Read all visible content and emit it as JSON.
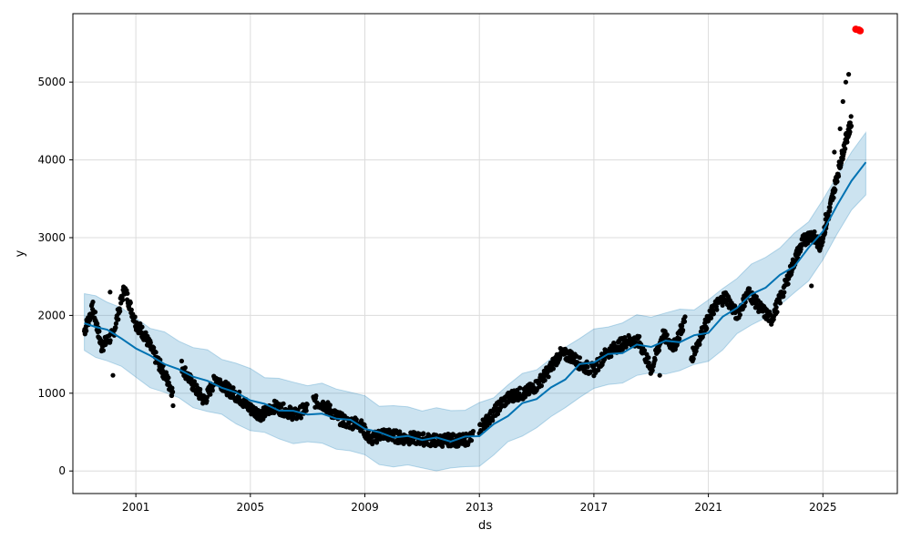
{
  "chart_data": {
    "type": "scatter",
    "title": "",
    "xlabel": "ds",
    "ylabel": "y",
    "xlim": [
      1998.8,
      2027.6
    ],
    "ylim": [
      -290,
      5880
    ],
    "x_ticks": [
      "2001",
      "2005",
      "2009",
      "2013",
      "2017",
      "2021",
      "2025"
    ],
    "y_ticks": [
      "0",
      "1000",
      "2000",
      "3000",
      "4000",
      "5000"
    ],
    "grid": true,
    "colors": {
      "observed": "#000000",
      "forecast_line": "#0072B2",
      "interval": "#0072B2",
      "highlight": "#ff0000"
    },
    "forecast": {
      "x": [
        1999.2,
        1999.6,
        2000.0,
        2000.5,
        2001.0,
        2001.5,
        2002.0,
        2002.5,
        2003.0,
        2003.5,
        2004.0,
        2004.5,
        2005.0,
        2005.5,
        2006.0,
        2006.5,
        2007.0,
        2007.5,
        2008.0,
        2008.5,
        2009.0,
        2009.5,
        2010.0,
        2010.5,
        2011.0,
        2011.5,
        2012.0,
        2012.5,
        2013.0,
        2013.5,
        2014.0,
        2014.5,
        2015.0,
        2015.5,
        2016.0,
        2016.5,
        2017.0,
        2017.5,
        2018.0,
        2018.5,
        2019.0,
        2019.5,
        2020.0,
        2020.5,
        2021.0,
        2021.5,
        2022.0,
        2022.5,
        2023.0,
        2023.5,
        2024.0,
        2024.5,
        2025.0,
        2025.5,
        2026.0,
        2026.5
      ],
      "yhat": [
        1900,
        1850,
        1820,
        1700,
        1580,
        1480,
        1380,
        1300,
        1220,
        1150,
        1080,
        1000,
        920,
        850,
        790,
        760,
        740,
        720,
        690,
        640,
        560,
        480,
        450,
        430,
        420,
        410,
        400,
        420,
        470,
        580,
        730,
        850,
        950,
        1050,
        1200,
        1350,
        1420,
        1480,
        1540,
        1600,
        1620,
        1650,
        1680,
        1720,
        1800,
        1960,
        2120,
        2250,
        2380,
        2500,
        2650,
        2850,
        3100,
        3400,
        3750,
        3950
      ],
      "interval_width": 380
    },
    "observed_segments": [
      {
        "x": [
          1999.2,
          1999.5,
          1999.8,
          2000.2,
          2000.6,
          2001.0,
          2001.3,
          2001.7,
          2002.0,
          2002.3
        ],
        "y": [
          1800,
          2100,
          1600,
          1750,
          2350,
          1900,
          1750,
          1450,
          1250,
          1000
        ]
      },
      {
        "x": [
          2002.6,
          2003.0,
          2003.4,
          2003.8,
          2004.2,
          2004.6,
          2005.0,
          2005.4,
          2005.8,
          2006.2,
          2006.6,
          2007.0
        ],
        "y": [
          1350,
          1100,
          900,
          1200,
          1050,
          950,
          800,
          720,
          830,
          780,
          720,
          820
        ]
      },
      {
        "x": [
          2007.2,
          2007.6,
          2008.0,
          2008.4,
          2008.8,
          2009.2,
          2009.6,
          2010.0,
          2010.4,
          2010.8,
          2011.2,
          2011.6,
          2012.0,
          2012.4,
          2012.8
        ],
        "y": [
          900,
          850,
          700,
          620,
          620,
          400,
          480,
          450,
          420,
          420,
          400,
          390,
          400,
          390,
          440
        ]
      },
      {
        "x": [
          2013.0,
          2013.4,
          2013.8,
          2014.2,
          2014.6,
          2015.0,
          2015.4,
          2015.8,
          2016.2,
          2016.6,
          2017.0,
          2017.4,
          2017.8,
          2018.2,
          2018.6,
          2019.0,
          2019.4,
          2019.8,
          2020.2
        ],
        "y": [
          550,
          700,
          880,
          980,
          1000,
          1100,
          1280,
          1500,
          1480,
          1350,
          1300,
          1500,
          1600,
          1680,
          1650,
          1300,
          1750,
          1600,
          1950
        ]
      },
      {
        "x": [
          2020.4,
          2020.8,
          2021.2,
          2021.6,
          2022.0,
          2022.4,
          2022.8,
          2023.2,
          2023.6,
          2024.0,
          2024.3,
          2024.6,
          2024.9,
          2025.2,
          2025.5,
          2025.8,
          2026.0
        ],
        "y": [
          1450,
          1800,
          2100,
          2250,
          2000,
          2300,
          2100,
          1950,
          2300,
          2700,
          2950,
          3050,
          2900,
          3300,
          3800,
          4250,
          4500
        ]
      }
    ],
    "observed_outliers": [
      {
        "x": 2000.1,
        "y": 2300
      },
      {
        "x": 2000.2,
        "y": 1230
      },
      {
        "x": 2002.3,
        "y": 840
      },
      {
        "x": 2019.3,
        "y": 1230
      },
      {
        "x": 2024.6,
        "y": 2380
      },
      {
        "x": 2025.4,
        "y": 4100
      },
      {
        "x": 2025.7,
        "y": 4750
      },
      {
        "x": 2025.8,
        "y": 5000
      },
      {
        "x": 2025.9,
        "y": 5100
      },
      {
        "x": 2025.6,
        "y": 4400
      },
      {
        "x": 2025.1,
        "y": 3300
      }
    ],
    "highlight_points": [
      {
        "x": 2026.15,
        "y": 5680
      },
      {
        "x": 2026.25,
        "y": 5670
      },
      {
        "x": 2026.3,
        "y": 5660
      }
    ]
  }
}
